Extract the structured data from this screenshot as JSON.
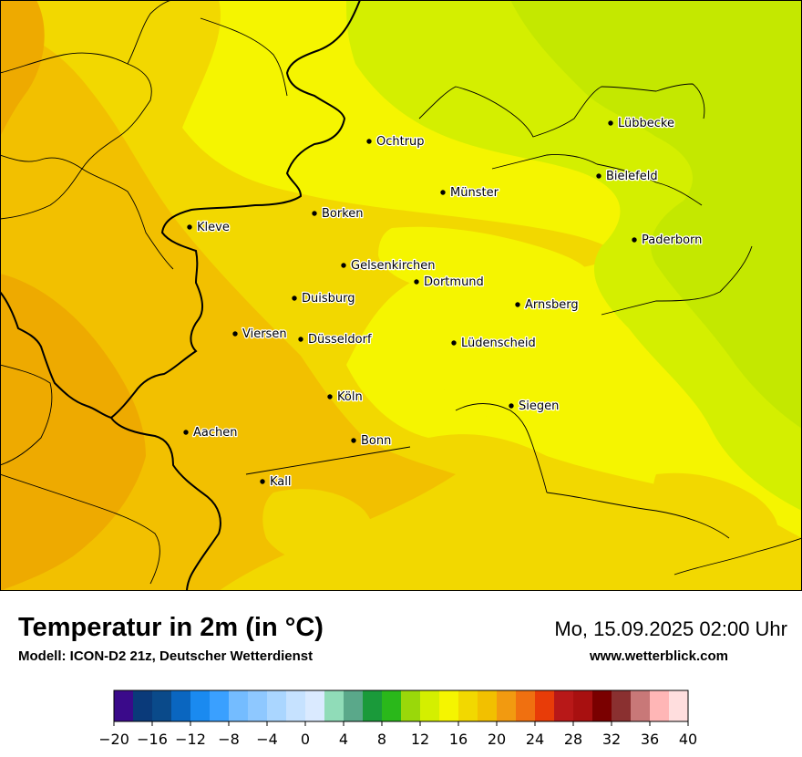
{
  "title": "Temperatur in 2m (in °C)",
  "model_info": "Modell: ICON-D2 21z, Deutscher Wetterdienst",
  "datetime": "Mo, 15.09.2025 02:00 Uhr",
  "website": "www.wetterblick.com",
  "cities": [
    {
      "name": "Lübbecke"
    },
    {
      "name": "Ochtrup"
    },
    {
      "name": "Bielefeld"
    },
    {
      "name": "Münster"
    },
    {
      "name": "Borken"
    },
    {
      "name": "Kleve"
    },
    {
      "name": "Paderborn"
    },
    {
      "name": "Gelsenkirchen"
    },
    {
      "name": "Dortmund"
    },
    {
      "name": "Duisburg"
    },
    {
      "name": "Arnsberg"
    },
    {
      "name": "Viersen"
    },
    {
      "name": "Düsseldorf"
    },
    {
      "name": "Lüdenscheid"
    },
    {
      "name": "Köln"
    },
    {
      "name": "Siegen"
    },
    {
      "name": "Aachen"
    },
    {
      "name": "Bonn"
    },
    {
      "name": "Kall"
    }
  ],
  "colorbar": {
    "ticks": [
      "−20",
      "−16",
      "−12",
      "−8",
      "−4",
      "0",
      "4",
      "8",
      "12",
      "16",
      "20",
      "24",
      "28",
      "32",
      "36",
      "40"
    ],
    "colors": [
      "#3a0a8a",
      "#0a3a7a",
      "#0a4a8a",
      "#0a66c0",
      "#1a8af0",
      "#3aa0ff",
      "#74bcff",
      "#8ec8ff",
      "#aad6ff",
      "#c6e2ff",
      "#daeaff",
      "#90dcb8",
      "#5aa88a",
      "#1a9a3a",
      "#2ab81a",
      "#9ad80a",
      "#d4ef00",
      "#f5f500",
      "#f2d800",
      "#f2c000",
      "#f29a10",
      "#f07010",
      "#e83c08",
      "#b81818",
      "#a81010",
      "#7a0000",
      "#8a3030",
      "#c87878",
      "#ffb6b6",
      "#ffdede"
    ]
  },
  "colors": {
    "map_yellow": "#f5f500",
    "map_lightgreen": "#d4ef00",
    "map_greenyellow": "#c4e800",
    "map_gold": "#f2d800",
    "map_orange": "#f2c000",
    "map_darkorange": "#eeaa00"
  }
}
